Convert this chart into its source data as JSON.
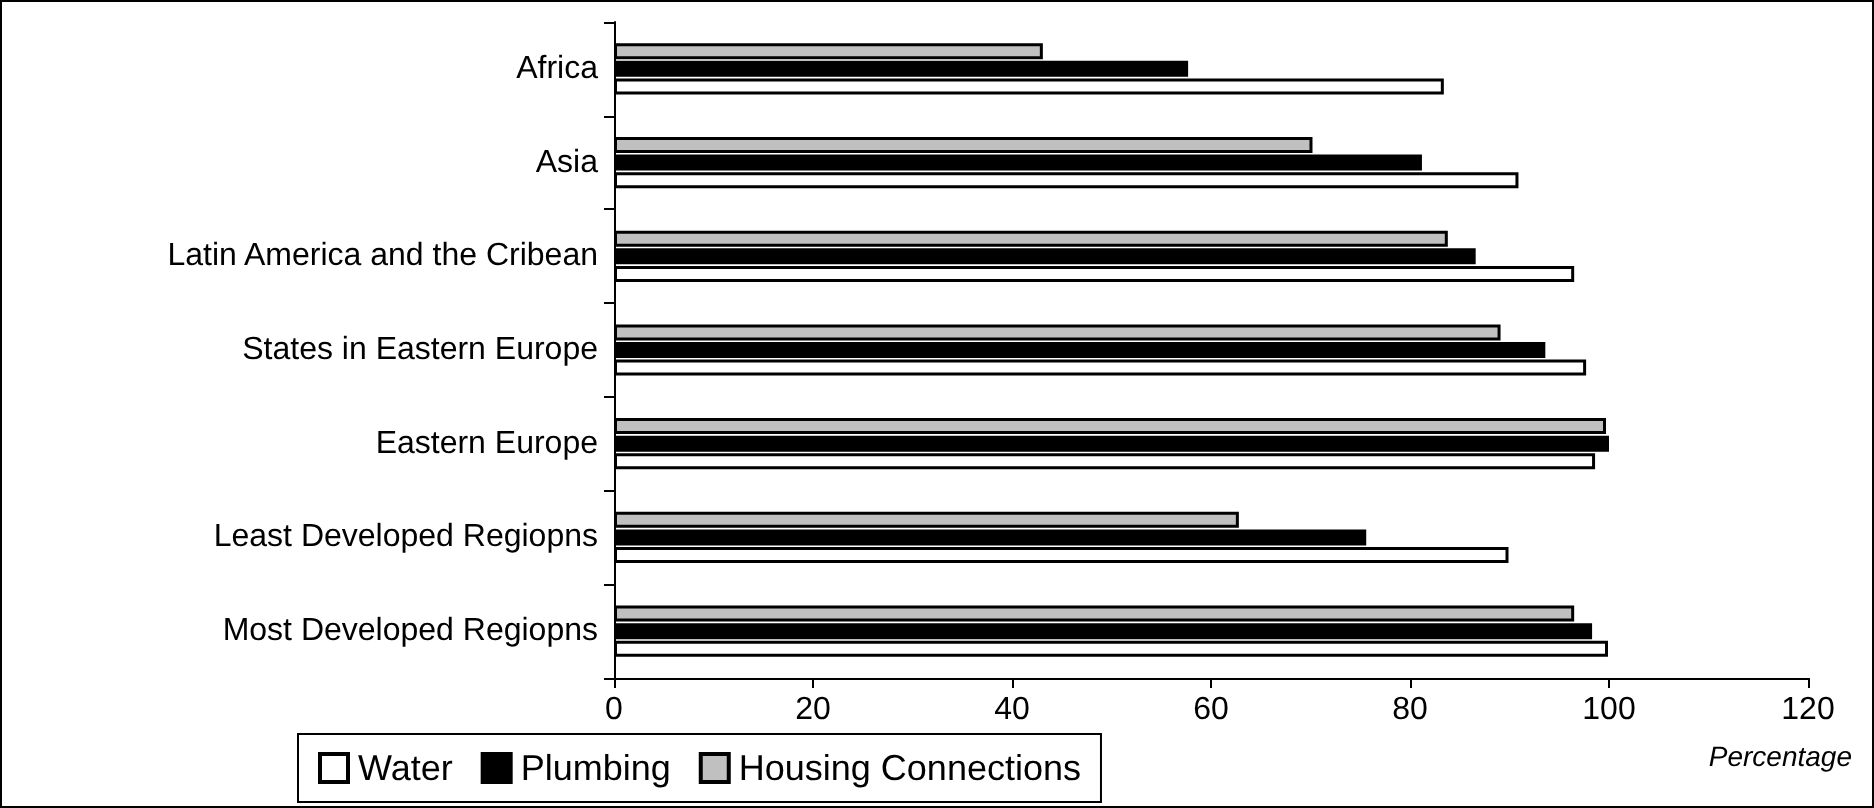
{
  "chart_data": {
    "type": "bar",
    "orientation": "horizontal",
    "xlabel": "Percentage",
    "categories": [
      "Africa",
      "Asia",
      "Latin America and the Cribean",
      "States in Eastern Europe",
      "Eastern Europe",
      "Least Developed Regiopns",
      "Most Developed Regiopns"
    ],
    "series": [
      {
        "name": "Water",
        "color": "#ffffff",
        "values": [
          83.4,
          90.9,
          96.5,
          97.7,
          98.6,
          89.9,
          99.9
        ]
      },
      {
        "name": "Plumbing",
        "color": "#000000",
        "values": [
          57.7,
          81.2,
          86.6,
          93.6,
          100,
          75.6,
          98.3
        ]
      },
      {
        "name": "Housing Connections",
        "color": "#c0c0c0",
        "values": [
          43.1,
          70.2,
          83.8,
          89.1,
          99.7,
          62.8,
          96.5
        ]
      }
    ],
    "xlim": [
      0,
      120
    ],
    "xticks": [
      0,
      20,
      40,
      60,
      80,
      100,
      120
    ],
    "grid": false,
    "legend": "bottom"
  }
}
